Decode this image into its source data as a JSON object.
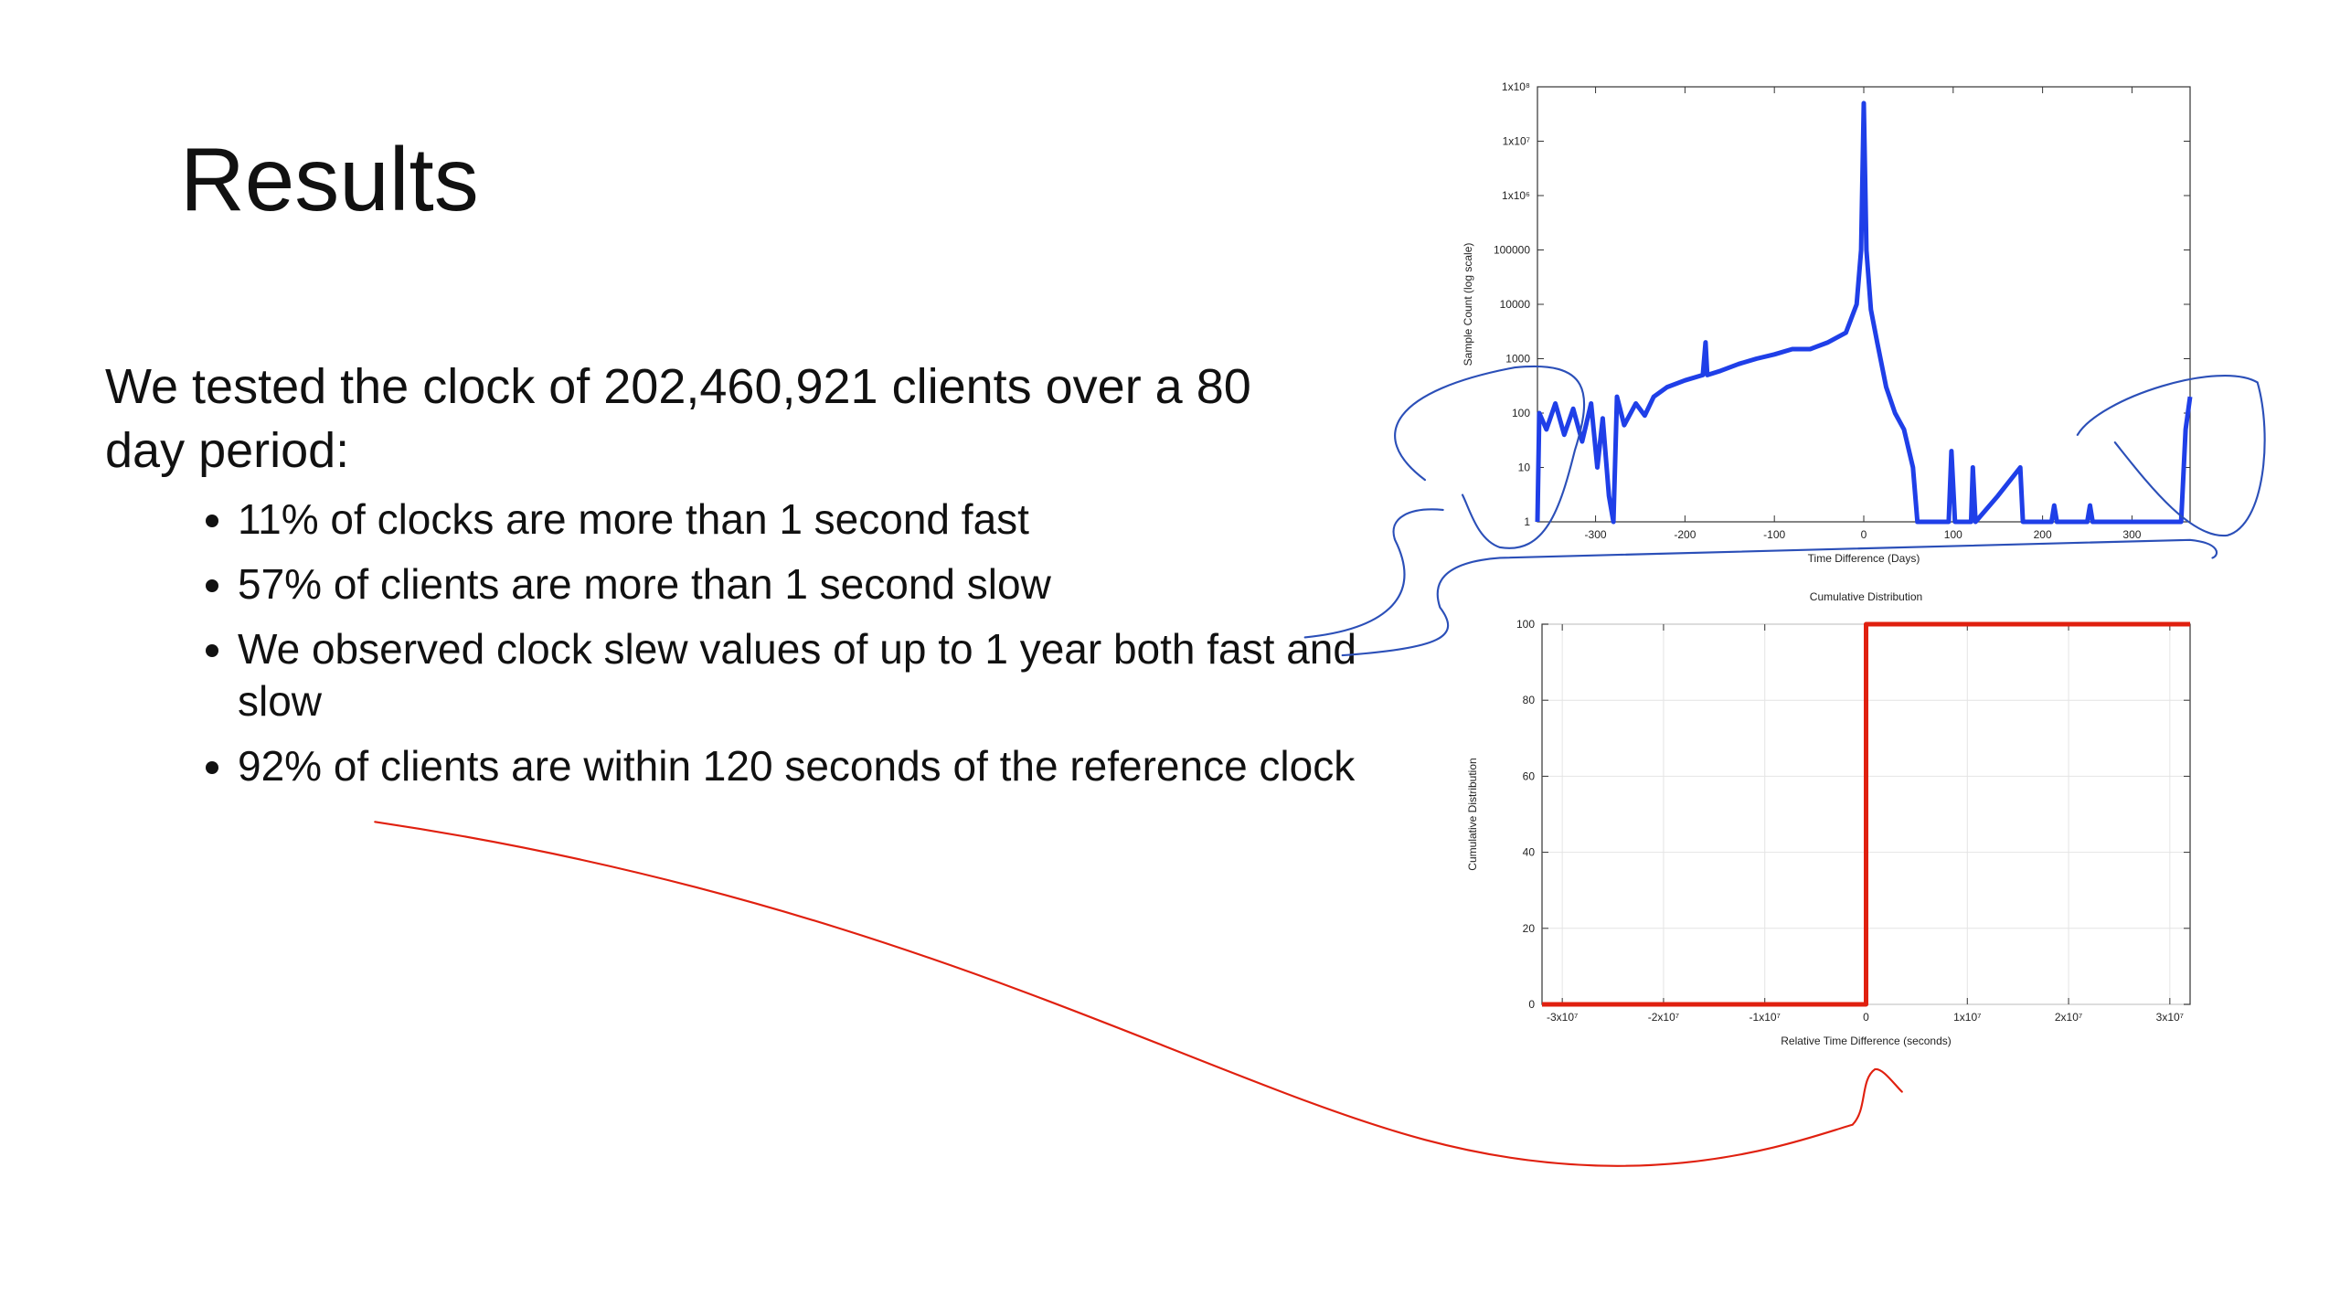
{
  "slide": {
    "title": "Results",
    "intro": "We tested the clock of 202,460,921 clients over a 80 day period:",
    "bullets": [
      "11% of clocks are more than 1 second fast",
      "57% of clients are more than 1 second slow",
      "We observed clock slew values of up to 1 year both fast and slow",
      "92% of clients are within 120 seconds of the reference clock"
    ]
  },
  "chart_data": [
    {
      "type": "line",
      "xlabel": "Time Difference (Days)",
      "ylabel": "Sample Count (log scale)",
      "yscale": "log",
      "color": "#1f3fe8",
      "grid": false,
      "xlim": [
        -365,
        365
      ],
      "xticks": [
        -300,
        -200,
        -100,
        0,
        100,
        200,
        300
      ],
      "ylim": [
        1,
        100000000
      ],
      "yticks": [
        1,
        10,
        100,
        1000,
        10000,
        100000,
        {
          "value": 1000000,
          "label": "1x10⁶"
        },
        {
          "value": 10000000,
          "label": "1x10⁷"
        },
        {
          "value": 100000000,
          "label": "1x10⁸"
        }
      ],
      "x": [
        -365,
        -363,
        -355,
        -345,
        -335,
        -325,
        -315,
        -305,
        -298,
        -292,
        -285,
        -280,
        -276,
        -268,
        -255,
        -245,
        -235,
        -220,
        -200,
        -180,
        -177,
        -175,
        -160,
        -140,
        -120,
        -100,
        -80,
        -60,
        -40,
        -20,
        -8,
        -3,
        0,
        3,
        8,
        15,
        25,
        35,
        45,
        55,
        60,
        70,
        95,
        98,
        102,
        120,
        122,
        125,
        150,
        175,
        178,
        210,
        213,
        216,
        250,
        253,
        256,
        355,
        360,
        365
      ],
      "values": [
        1,
        100,
        50,
        150,
        40,
        120,
        30,
        150,
        10,
        80,
        3,
        1,
        200,
        60,
        150,
        90,
        200,
        300,
        400,
        500,
        2000,
        500,
        600,
        800,
        1000,
        1200,
        1500,
        1500,
        2000,
        3000,
        10000,
        100000,
        50000000,
        100000,
        8000,
        2000,
        300,
        100,
        50,
        10,
        1,
        1,
        1,
        20,
        1,
        1,
        10,
        1,
        3,
        10,
        1,
        1,
        2,
        1,
        1,
        2,
        1,
        1,
        50,
        200
      ]
    },
    {
      "type": "line",
      "title": "Cumulative Distribution",
      "xlabel": "Relative Time Difference (seconds)",
      "ylabel": "Cumulative Distribution",
      "color": "#e0200f",
      "grid": true,
      "xlim": [
        -32000000,
        32000000
      ],
      "xticks": [
        {
          "value": -30000000,
          "label": "-3x10⁷"
        },
        {
          "value": -20000000,
          "label": "-2x10⁷"
        },
        {
          "value": -10000000,
          "label": "-1x10⁷"
        },
        0,
        {
          "value": 10000000,
          "label": "1x10⁷"
        },
        {
          "value": 20000000,
          "label": "2x10⁷"
        },
        {
          "value": 30000000,
          "label": "3x10⁷"
        }
      ],
      "ylim": [
        0,
        100
      ],
      "yticks": [
        0,
        20,
        40,
        60,
        80,
        100
      ],
      "x": [
        -32000000,
        0,
        0,
        32000000
      ],
      "values": [
        0,
        0,
        100,
        100
      ]
    }
  ]
}
